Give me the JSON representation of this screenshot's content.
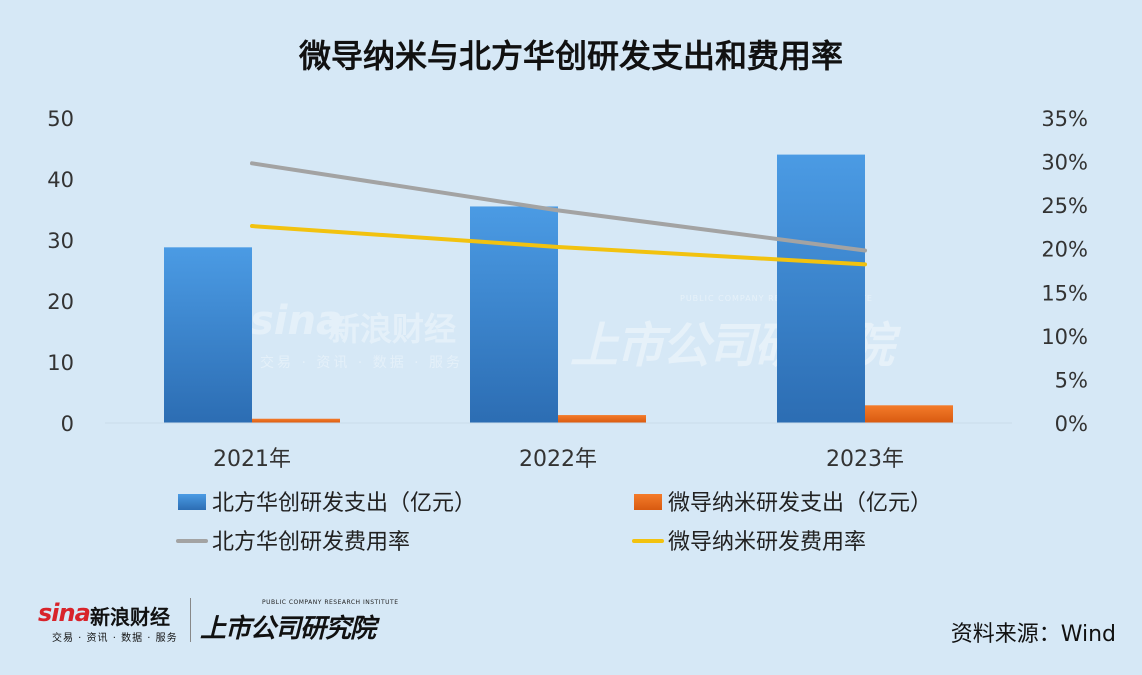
{
  "chart_data": {
    "type": "bar",
    "title": "微导纳米与北方华创研发支出和费用率",
    "categories": [
      "2021年",
      "2022年",
      "2023年"
    ],
    "y_left": {
      "ticks": [
        "0",
        "10",
        "20",
        "30",
        "40",
        "50"
      ],
      "range": [
        0,
        50
      ]
    },
    "y_right": {
      "ticks": [
        "0%",
        "5%",
        "10%",
        "15%",
        "20%",
        "25%",
        "30%",
        "35%"
      ],
      "range": [
        0,
        35
      ]
    },
    "bar_series": [
      {
        "name": "北方华创研发支出（亿元）",
        "values": [
          28.8,
          35.5,
          44.0
        ],
        "color": "#3f8fd8"
      },
      {
        "name": "微导纳米研发支出（亿元）",
        "values": [
          0.7,
          1.3,
          2.9
        ],
        "color": "#f06a1c"
      }
    ],
    "line_series": [
      {
        "name": "北方华创研发费用率",
        "values": [
          29.8,
          24.4,
          19.8
        ],
        "color": "#a3a3a3"
      },
      {
        "name": "微导纳米研发费用率",
        "values": [
          22.6,
          20.2,
          18.2
        ],
        "color": "#f2c20f"
      }
    ],
    "legend_placement": "bottom",
    "grid": false
  },
  "watermarks": {
    "sina_brand": "sina",
    "sina_name": "新浪财经",
    "sina_sub": "交易 · 资讯 · 数据 · 服务",
    "institute_cn": "上市公司研究院",
    "institute_en": "PUBLIC COMPANY RESEARCH INSTITUTE"
  },
  "footer": {
    "sina_brand": "sina",
    "sina_name": "新浪财经",
    "sina_sub": "交易 · 资讯 · 数据 · 服务",
    "institute_en": "PUBLIC COMPANY RESEARCH INSTITUTE",
    "institute_cn": "上市公司研究院",
    "source": "资料来源：Wind"
  }
}
